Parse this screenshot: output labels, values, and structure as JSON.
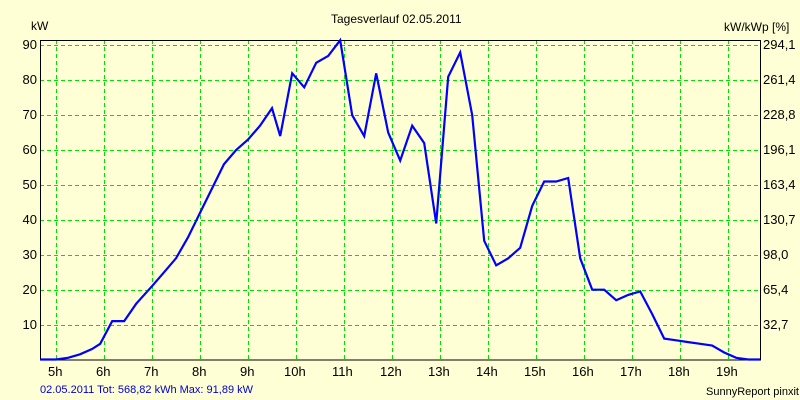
{
  "chart_data": {
    "type": "line",
    "title": "Tagesverlauf 02.05.2011",
    "ylabel": "kW",
    "ylabel_right": "kW/kWp [%]",
    "xlabel": "",
    "ylim": [
      0,
      91.5
    ],
    "y_ticks": [
      10,
      20,
      30,
      40,
      50,
      60,
      70,
      80,
      90
    ],
    "y_ticks_right": [
      "32,7",
      "65,4",
      "98,0",
      "130,7",
      "163,4",
      "196,1",
      "228,8",
      "261,4",
      "294,1"
    ],
    "x_ticks": [
      "5h",
      "6h",
      "7h",
      "8h",
      "9h",
      "10h",
      "11h",
      "12h",
      "13h",
      "14h",
      "15h",
      "16h",
      "17h",
      "18h",
      "19h"
    ],
    "grid": true,
    "series": [
      {
        "name": "kW",
        "color": "#0000ff",
        "x": [
          4.67,
          5.0,
          5.25,
          5.5,
          5.75,
          5.92,
          6.17,
          6.42,
          6.67,
          7.0,
          7.25,
          7.5,
          7.75,
          8.0,
          8.25,
          8.5,
          8.75,
          9.0,
          9.25,
          9.5,
          9.67,
          9.92,
          10.17,
          10.42,
          10.67,
          10.92,
          11.17,
          11.42,
          11.67,
          11.92,
          12.17,
          12.42,
          12.67,
          12.92,
          13.17,
          13.42,
          13.67,
          13.92,
          14.17,
          14.42,
          14.67,
          14.92,
          15.17,
          15.42,
          15.67,
          15.92,
          16.17,
          16.42,
          16.67,
          16.92,
          17.17,
          17.42,
          17.67,
          17.92,
          18.17,
          18.42,
          18.67,
          18.92,
          19.17,
          19.42,
          19.67
        ],
        "y": [
          0,
          0,
          0.5,
          1.5,
          3,
          4.5,
          11,
          11,
          16,
          21,
          25,
          29,
          35,
          42,
          49,
          56,
          60,
          63,
          67,
          72,
          64,
          82,
          78,
          85,
          87,
          91.5,
          70,
          64,
          82,
          65,
          57,
          67,
          62,
          39,
          81,
          88,
          70,
          34,
          27,
          29,
          32,
          44,
          51,
          51,
          52,
          29,
          20,
          20,
          17,
          18.5,
          19.5,
          13,
          6,
          5.5,
          5,
          4.5,
          4,
          2,
          0.5,
          0,
          0
        ]
      }
    ]
  },
  "footer": {
    "summary": "02.05.2011 Tot: 568,82 kWh Max: 91,89 kW",
    "credit": "SunnyReport pinxit"
  }
}
